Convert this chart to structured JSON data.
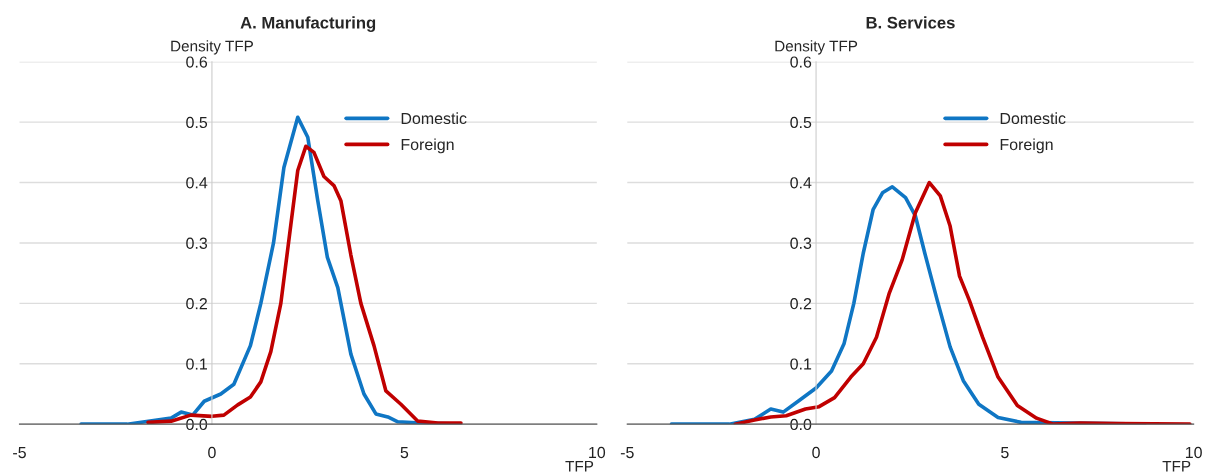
{
  "chart_data": [
    {
      "type": "line",
      "title": "A. Manufacturing",
      "xlabel": "TFP",
      "ylabel": "Density TFP",
      "xlim": [
        -5,
        10
      ],
      "xticks": [
        -5,
        0,
        5,
        10
      ],
      "ylim": [
        0,
        0.6
      ],
      "yticks": [
        {
          "value": 0,
          "label": "0.0"
        },
        0.1,
        0.2,
        0.3,
        0.4,
        0.5,
        0.6
      ],
      "grid": "y",
      "legend": "top right",
      "series": [
        {
          "name": "Domestic",
          "color": "#0f76c4",
          "x": [
            -3.4,
            -2.2,
            -1.06,
            -0.8,
            -0.5,
            -0.2,
            0.23,
            0.57,
            1.0,
            1.27,
            1.6,
            1.87,
            2.23,
            2.49,
            2.75,
            3.0,
            3.27,
            3.61,
            3.95,
            4.26,
            4.57,
            4.83,
            5.43,
            6.45
          ],
          "values": [
            0,
            0,
            0.01,
            0.02,
            0.015,
            0.038,
            0.05,
            0.066,
            0.13,
            0.2,
            0.3,
            0.425,
            0.508,
            0.475,
            0.37,
            0.276,
            0.226,
            0.116,
            0.05,
            0.017,
            0.012,
            0.004,
            0.002,
            0
          ]
        },
        {
          "name": "Foreign",
          "color": "#c00000",
          "x": [
            -1.66,
            -1.06,
            -0.55,
            0,
            0.31,
            0.67,
            1.0,
            1.27,
            1.53,
            1.79,
            2.05,
            2.23,
            2.44,
            2.65,
            2.91,
            3.17,
            3.35,
            3.61,
            3.87,
            4.21,
            4.52,
            4.91,
            5.35,
            5.87,
            6.47
          ],
          "values": [
            0.003,
            0.005,
            0.015,
            0.013,
            0.015,
            0.032,
            0.045,
            0.07,
            0.12,
            0.2,
            0.33,
            0.42,
            0.46,
            0.45,
            0.41,
            0.395,
            0.37,
            0.28,
            0.2,
            0.13,
            0.055,
            0.033,
            0.005,
            0.002,
            0.002
          ]
        }
      ]
    },
    {
      "type": "line",
      "title": "B. Services",
      "xlabel": "TFP",
      "ylabel": "Density TFP",
      "xlim": [
        -5,
        10
      ],
      "xticks": [
        -5,
        0,
        5,
        10
      ],
      "ylim": [
        0,
        0.6
      ],
      "yticks": [
        {
          "value": 0,
          "label": "0.0"
        },
        0.1,
        0.2,
        0.3,
        0.4,
        0.5,
        0.6
      ],
      "grid": "y",
      "legend": "top right",
      "series": [
        {
          "name": "Domestic",
          "color": "#0f76c4",
          "x": [
            -3.83,
            -2.3,
            -1.63,
            -1.2,
            -0.87,
            -0.43,
            0,
            0.41,
            0.74,
            1.0,
            1.25,
            1.51,
            1.76,
            2.02,
            2.37,
            2.63,
            2.88,
            3.21,
            3.55,
            3.9,
            4.31,
            4.82,
            5.43,
            8.7
          ],
          "values": [
            0,
            0,
            0.008,
            0.025,
            0.02,
            0.04,
            0.06,
            0.088,
            0.133,
            0.2,
            0.283,
            0.355,
            0.383,
            0.393,
            0.375,
            0.345,
            0.283,
            0.205,
            0.128,
            0.072,
            0.033,
            0.011,
            0.003,
            0
          ]
        },
        {
          "name": "Foreign",
          "color": "#c00000",
          "x": [
            -2.14,
            -1.63,
            -1.2,
            -0.79,
            -0.28,
            0.08,
            0.49,
            0.92,
            1.25,
            1.6,
            1.94,
            2.28,
            2.63,
            3.0,
            3.29,
            3.55,
            3.8,
            4.06,
            4.41,
            4.82,
            5.33,
            5.84,
            6.28,
            7.0,
            8.0,
            9.9
          ],
          "values": [
            0,
            0.007,
            0.012,
            0.014,
            0.025,
            0.029,
            0.044,
            0.078,
            0.1,
            0.144,
            0.217,
            0.272,
            0.35,
            0.4,
            0.378,
            0.328,
            0.245,
            0.205,
            0.144,
            0.078,
            0.031,
            0.01,
            0,
            0.002,
            0.001,
            0
          ]
        }
      ]
    }
  ]
}
